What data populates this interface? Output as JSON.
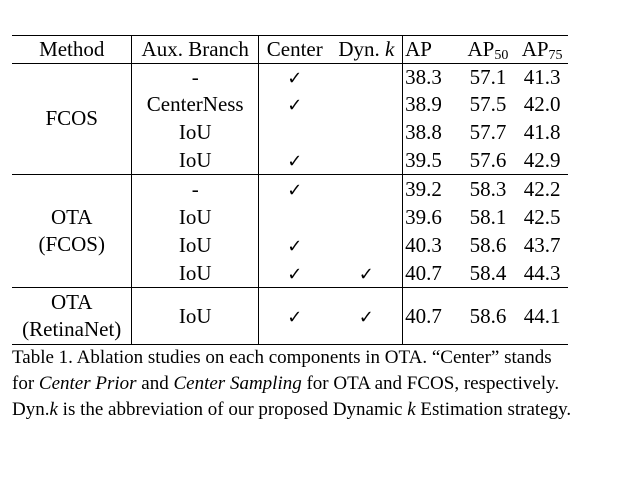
{
  "table": {
    "headers": {
      "method": "Method",
      "aux_branch": "Aux. Branch",
      "center": "Center",
      "dyn_prefix": "Dyn.",
      "dyn_var": "k",
      "ap": "AP",
      "ap50_base": "AP",
      "ap50_sub": "50",
      "ap75_base": "AP",
      "ap75_sub": "75"
    },
    "check_symbol": "✓",
    "groups": [
      {
        "method": [
          "FCOS"
        ],
        "rows": [
          {
            "aux": "-",
            "center": "✓",
            "dyn": "",
            "ap": "38.3",
            "ap50": "57.1",
            "ap75": "41.3"
          },
          {
            "aux": "CenterNess",
            "center": "✓",
            "dyn": "",
            "ap": "38.9",
            "ap50": "57.5",
            "ap75": "42.0"
          },
          {
            "aux": "IoU",
            "center": "",
            "dyn": "",
            "ap": "38.8",
            "ap50": "57.7",
            "ap75": "41.8"
          },
          {
            "aux": "IoU",
            "center": "✓",
            "dyn": "",
            "ap": "39.5",
            "ap50": "57.6",
            "ap75": "42.9"
          }
        ]
      },
      {
        "method": [
          "OTA",
          "(FCOS)"
        ],
        "rows": [
          {
            "aux": "-",
            "center": "✓",
            "dyn": "",
            "ap": "39.2",
            "ap50": "58.3",
            "ap75": "42.2"
          },
          {
            "aux": "IoU",
            "center": "",
            "dyn": "",
            "ap": "39.6",
            "ap50": "58.1",
            "ap75": "42.5"
          },
          {
            "aux": "IoU",
            "center": "✓",
            "dyn": "",
            "ap": "40.3",
            "ap50": "58.6",
            "ap75": "43.7"
          },
          {
            "aux": "IoU",
            "center": "✓",
            "dyn": "✓",
            "ap": "40.7",
            "ap50": "58.4",
            "ap75": "44.3"
          }
        ]
      },
      {
        "method": [
          "OTA",
          "(RetinaNet)"
        ],
        "rows": [
          {
            "aux": "IoU",
            "center": "✓",
            "dyn": "✓",
            "ap": "40.7",
            "ap50": "58.6",
            "ap75": "44.1"
          }
        ]
      }
    ]
  },
  "caption": {
    "label": "Table 1.",
    "t1": " Ablation studies on each components in OTA. “Center” stands for ",
    "i1": "Center Prior",
    "t2": " and ",
    "i2": "Center Sampling",
    "t3": " for OTA and FCOS, respectively. Dyn.",
    "k1": "k",
    "t4": " is the abbreviation of our proposed Dynamic ",
    "k2": "k",
    "t5": " Estimation strategy."
  }
}
